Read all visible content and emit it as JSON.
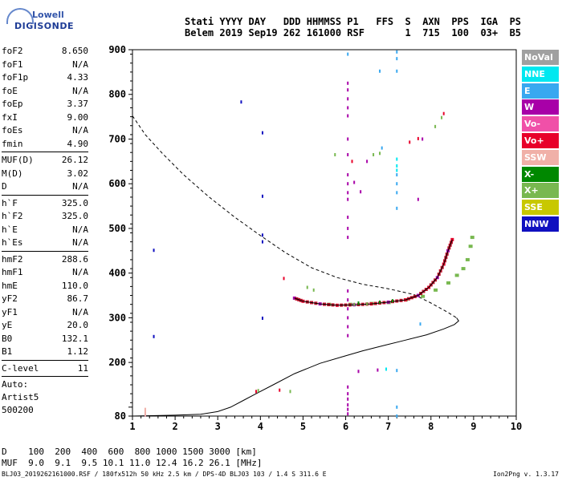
{
  "logo": {
    "line1": "Lowell",
    "line2": "DIGISONDE"
  },
  "header": {
    "line1": "Stati YYYY DAY   DDD HHMMSS P1   FFS  S  AXN  PPS  IGA  PS",
    "line2": "Belem 2019 Sep19 262 161000 RSF       1  715  100  03+  B5"
  },
  "params": {
    "group1": [
      {
        "k": "foF2",
        "v": "8.650"
      },
      {
        "k": "foF1",
        "v": "N/A"
      },
      {
        "k": "foF1p",
        "v": "4.33"
      },
      {
        "k": "foE",
        "v": "N/A"
      },
      {
        "k": "foEp",
        "v": "3.37"
      },
      {
        "k": "fxI",
        "v": "9.00"
      },
      {
        "k": "foEs",
        "v": "N/A"
      },
      {
        "k": "fmin",
        "v": "4.90"
      }
    ],
    "group2": [
      {
        "k": "MUF(D)",
        "v": "26.12"
      },
      {
        "k": "M(D)",
        "v": "3.02"
      },
      {
        "k": "D",
        "v": "N/A"
      }
    ],
    "group3": [
      {
        "k": "h`F",
        "v": "325.0"
      },
      {
        "k": "h`F2",
        "v": "325.0"
      },
      {
        "k": "h`E",
        "v": "N/A"
      },
      {
        "k": "h`Es",
        "v": "N/A"
      }
    ],
    "group4": [
      {
        "k": "hmF2",
        "v": "288.6"
      },
      {
        "k": "hmF1",
        "v": "N/A"
      },
      {
        "k": "hmE",
        "v": "110.0"
      },
      {
        "k": "yF2",
        "v": "86.7"
      },
      {
        "k": "yF1",
        "v": "N/A"
      },
      {
        "k": "yE",
        "v": "20.0"
      },
      {
        "k": "B0",
        "v": "132.1"
      },
      {
        "k": "B1",
        "v": "1.12"
      }
    ],
    "group5": [
      {
        "k": "C-level",
        "v": "11"
      }
    ]
  },
  "autoscale": {
    "line1": "Auto:",
    "line2": "Artist5",
    "line3": "500200"
  },
  "legend": [
    {
      "label": "NoVal",
      "color": "#a0a0a0"
    },
    {
      "label": "NNE",
      "color": "#00e8f0"
    },
    {
      "label": "E",
      "color": "#38a8f0"
    },
    {
      "label": "W",
      "color": "#a800a8"
    },
    {
      "label": "Vo-",
      "color": "#f050a8"
    },
    {
      "label": "Vo+",
      "color": "#e8002a"
    },
    {
      "label": "SSW",
      "color": "#f0b0a8"
    },
    {
      "label": "X-",
      "color": "#008800"
    },
    {
      "label": "X+",
      "color": "#78b850"
    },
    {
      "label": "SSE",
      "color": "#c8c800"
    },
    {
      "label": "NNW",
      "color": "#1010c0"
    }
  ],
  "distance_table": {
    "row1": "D    100  200  400  600  800 1000 1500 3000 [km]",
    "row2": "MUF  9.0  9.1  9.5 10.1 11.0 12.4 16.2 26.1 [MHz]"
  },
  "footer": {
    "left": "BLJ03_2019262161000.RSF / 180fx512h 50 kHz 2.5 km / DPS-4D BLJ03 103 / 1.4 S 311.6 E",
    "right": "Ion2Png v. 1.3.17"
  },
  "chart_data": {
    "type": "scatter",
    "xlabel": "",
    "ylabel": "",
    "xlim": [
      1,
      10
    ],
    "ylim": [
      80,
      900
    ],
    "xticks": [
      1,
      2,
      3,
      4,
      5,
      6,
      7,
      8,
      9,
      10
    ],
    "yticks": [
      80,
      100,
      200,
      300,
      400,
      500,
      600,
      700,
      800,
      900
    ],
    "ytick_labels": [
      "80",
      "",
      "200",
      "300",
      "400",
      "500",
      "600",
      "700",
      "800",
      "900"
    ],
    "grid": false,
    "height_profile": [
      [
        1.0,
        80
      ],
      [
        2.0,
        82
      ],
      [
        2.6,
        84
      ],
      [
        3.0,
        90
      ],
      [
        3.3,
        100
      ],
      [
        3.6,
        115
      ],
      [
        3.9,
        130
      ],
      [
        4.3,
        150
      ],
      [
        4.8,
        175
      ],
      [
        5.4,
        198
      ],
      [
        5.9,
        212
      ],
      [
        6.4,
        226
      ],
      [
        6.9,
        238
      ],
      [
        7.4,
        250
      ],
      [
        7.9,
        262
      ],
      [
        8.3,
        275
      ],
      [
        8.55,
        285
      ],
      [
        8.65,
        293
      ],
      [
        8.6,
        300
      ]
    ],
    "scaled_profile": [
      [
        1.0,
        752
      ],
      [
        1.3,
        710
      ],
      [
        1.7,
        668
      ],
      [
        2.2,
        620
      ],
      [
        2.8,
        570
      ],
      [
        3.4,
        525
      ],
      [
        4.0,
        484
      ],
      [
        4.6,
        445
      ],
      [
        5.2,
        412
      ],
      [
        5.8,
        390
      ],
      [
        6.4,
        375
      ],
      [
        7.0,
        365
      ],
      [
        7.6,
        352
      ],
      [
        8.0,
        333
      ],
      [
        8.4,
        312
      ],
      [
        8.6,
        300
      ]
    ],
    "trace_o": [
      [
        4.8,
        344
      ],
      [
        5.0,
        337
      ],
      [
        5.4,
        331
      ],
      [
        5.8,
        328
      ],
      [
        6.2,
        329
      ],
      [
        6.6,
        331
      ],
      [
        7.0,
        335
      ],
      [
        7.4,
        340
      ],
      [
        7.7,
        350
      ],
      [
        7.95,
        368
      ],
      [
        8.15,
        390
      ],
      [
        8.3,
        420
      ],
      [
        8.4,
        450
      ],
      [
        8.5,
        475
      ]
    ],
    "echoes": [
      {
        "color": "#1010c0",
        "points": [
          [
            3.55,
            783
          ],
          [
            4.05,
            714
          ],
          [
            4.05,
            572
          ],
          [
            4.05,
            485
          ],
          [
            4.05,
            470
          ],
          [
            4.05,
            299
          ],
          [
            1.5,
            451
          ],
          [
            1.5,
            258
          ],
          [
            1.3,
            82
          ]
        ]
      },
      {
        "color": "#a800a8",
        "points": [
          [
            6.05,
            825
          ],
          [
            6.05,
            810
          ],
          [
            6.05,
            790
          ],
          [
            6.05,
            770
          ],
          [
            6.05,
            752
          ],
          [
            6.05,
            700
          ],
          [
            6.05,
            665
          ],
          [
            6.05,
            620
          ],
          [
            6.05,
            600
          ],
          [
            6.05,
            580
          ],
          [
            6.05,
            565
          ],
          [
            6.05,
            525
          ],
          [
            6.05,
            500
          ],
          [
            6.05,
            480
          ],
          [
            6.05,
            360
          ],
          [
            6.05,
            340
          ],
          [
            6.05,
            320
          ],
          [
            6.05,
            300
          ],
          [
            6.05,
            280
          ],
          [
            6.05,
            260
          ],
          [
            6.05,
            145
          ],
          [
            6.05,
            130
          ],
          [
            6.05,
            118
          ],
          [
            6.05,
            105
          ],
          [
            6.05,
            95
          ],
          [
            6.05,
            85
          ],
          [
            6.35,
            582
          ],
          [
            6.2,
            603
          ],
          [
            6.5,
            650
          ],
          [
            7.7,
            565
          ],
          [
            7.8,
            700
          ],
          [
            6.3,
            180
          ],
          [
            6.75,
            183
          ]
        ]
      },
      {
        "color": "#38a8f0",
        "points": [
          [
            6.05,
            890
          ],
          [
            7.2,
            895
          ],
          [
            7.2,
            880
          ],
          [
            6.8,
            852
          ],
          [
            7.2,
            852
          ],
          [
            7.2,
            620
          ],
          [
            7.2,
            600
          ],
          [
            7.2,
            580
          ],
          [
            7.2,
            545
          ],
          [
            6.85,
            680
          ],
          [
            7.2,
            182
          ],
          [
            7.2,
            100
          ],
          [
            7.2,
            80
          ],
          [
            7.75,
            286
          ]
        ]
      },
      {
        "color": "#00e8f0",
        "points": [
          [
            7.2,
            655
          ],
          [
            7.2,
            640
          ],
          [
            7.2,
            630
          ],
          [
            6.95,
            185
          ]
        ]
      },
      {
        "color": "#e8002a",
        "points": [
          [
            4.55,
            388
          ],
          [
            3.9,
            135
          ],
          [
            4.45,
            138
          ],
          [
            6.15,
            650
          ],
          [
            7.5,
            693
          ],
          [
            7.7,
            701
          ],
          [
            8.3,
            757
          ]
        ]
      },
      {
        "color": "#78b850",
        "points": [
          [
            5.1,
            368
          ],
          [
            5.25,
            362
          ],
          [
            5.75,
            665
          ],
          [
            6.65,
            665
          ],
          [
            6.8,
            668
          ],
          [
            8.1,
            728
          ],
          [
            8.25,
            748
          ],
          [
            4.7,
            135
          ],
          [
            3.95,
            137
          ],
          [
            6.2,
            330
          ],
          [
            6.5,
            331
          ]
        ]
      },
      {
        "color": "#f0b0a8",
        "points": [
          [
            1.3,
            95
          ],
          [
            1.3,
            90
          ],
          [
            1.3,
            86
          ],
          [
            1.3,
            82
          ]
        ]
      },
      {
        "color": "#008800",
        "points": [
          [
            6.3,
            333
          ],
          [
            6.8,
            335
          ],
          [
            7.1,
            338
          ]
        ]
      }
    ],
    "x_trace": [
      [
        5.6,
        330
      ],
      [
        6.1,
        330
      ],
      [
        6.6,
        332
      ],
      [
        7.0,
        334
      ],
      [
        7.4,
        340
      ],
      [
        7.8,
        348
      ],
      [
        8.1,
        362
      ],
      [
        8.4,
        378
      ],
      [
        8.6,
        395
      ],
      [
        8.75,
        410
      ],
      [
        8.85,
        430
      ],
      [
        8.92,
        460
      ],
      [
        8.96,
        480
      ]
    ]
  }
}
